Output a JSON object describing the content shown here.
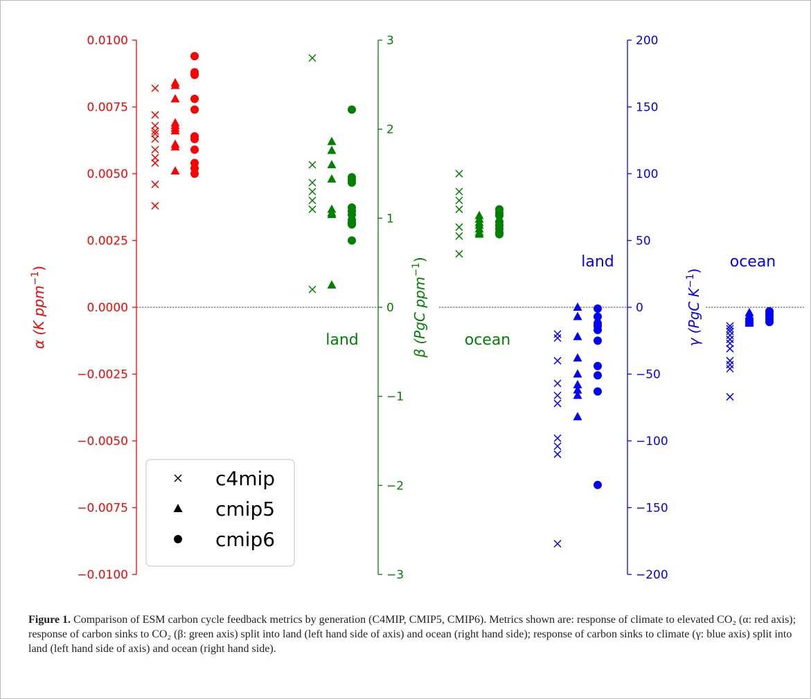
{
  "chart_data": {
    "type": "scatter",
    "groups": [
      "c4mip",
      "cmip5",
      "cmip6"
    ],
    "legend": {
      "entries": [
        "c4mip",
        "cmip5",
        "cmip6"
      ],
      "markers": [
        "x",
        "triangle",
        "circle"
      ],
      "position": "lower-left"
    },
    "zero_line": true,
    "axes": [
      {
        "id": "alpha",
        "label_greek": "α",
        "label_units": "(K ppm",
        "label_exp": "−1",
        "label_close": ")",
        "color": "#ff0000",
        "ylim": [
          -0.01,
          0.01
        ],
        "ticks": [
          0.01,
          0.0075,
          0.005,
          0.0025,
          0.0,
          -0.0025,
          -0.005,
          -0.0075,
          -0.01
        ],
        "tick_labels": [
          "0.0100",
          "0.0075",
          "0.0050",
          "0.0025",
          "0.0000",
          "−0.0025",
          "−0.0050",
          "−0.0075",
          "−0.0100"
        ],
        "columns": [
          {
            "group": "c4mip",
            "values": [
              0.0082,
              0.0072,
              0.0068,
              0.0066,
              0.0065,
              0.0063,
              0.0059,
              0.0056,
              0.0054,
              0.0046,
              0.0038
            ]
          },
          {
            "group": "cmip5",
            "values": [
              0.0084,
              0.0083,
              0.0078,
              0.0069,
              0.0068,
              0.0067,
              0.0066,
              0.0061,
              0.006,
              0.0051
            ]
          },
          {
            "group": "cmip6",
            "values": [
              0.0094,
              0.0088,
              0.0087,
              0.0078,
              0.0074,
              0.0064,
              0.0063,
              0.0059,
              0.0054,
              0.0052,
              0.005
            ]
          }
        ]
      },
      {
        "id": "beta",
        "label_greek": "β",
        "label_units": "(PgC ppm",
        "label_exp": "−1",
        "label_close": ")",
        "color": "#008000",
        "ylim": [
          -3,
          3
        ],
        "ticks": [
          3,
          2,
          1,
          0,
          -1,
          -2,
          -3
        ],
        "tick_labels": [
          "3",
          "2",
          "1",
          "0",
          "−1",
          "−2",
          "−3"
        ],
        "section_labels": [
          "land",
          "ocean"
        ],
        "columns": [
          {
            "section": "land",
            "group": "c4mip",
            "values": [
              2.8,
              1.6,
              1.4,
              1.3,
              1.2,
              1.1,
              0.2
            ]
          },
          {
            "section": "land",
            "group": "cmip5",
            "values": [
              1.86,
              1.76,
              1.6,
              1.44,
              1.1,
              1.06,
              1.04,
              0.25
            ]
          },
          {
            "section": "land",
            "group": "cmip6",
            "values": [
              2.22,
              1.46,
              1.43,
              1.4,
              1.12,
              1.08,
              1.04,
              0.98,
              0.95,
              0.93,
              0.75
            ]
          },
          {
            "section": "ocean",
            "group": "c4mip",
            "values": [
              1.5,
              1.3,
              1.2,
              1.1,
              0.9,
              0.8,
              0.6
            ]
          },
          {
            "section": "ocean",
            "group": "cmip5",
            "values": [
              1.03,
              0.99,
              0.95,
              0.92,
              0.88,
              0.84,
              0.82
            ]
          },
          {
            "section": "ocean",
            "group": "cmip6",
            "values": [
              1.1,
              1.06,
              1.03,
              0.96,
              0.92,
              0.88,
              0.84,
              0.82
            ]
          }
        ]
      },
      {
        "id": "gamma",
        "label_greek": "γ",
        "label_units": "(PgC K",
        "label_exp": "−1",
        "label_close": ")",
        "color": "#0000ff",
        "ylim": [
          -200,
          200
        ],
        "ticks": [
          200,
          150,
          100,
          50,
          0,
          -50,
          -100,
          -150,
          -200
        ],
        "tick_labels": [
          "200",
          "150",
          "100",
          "50",
          "0",
          "−50",
          "−100",
          "−150",
          "−200"
        ],
        "section_labels": [
          "land",
          "ocean"
        ],
        "columns": [
          {
            "section": "land",
            "group": "c4mip",
            "values": [
              -20,
              -23,
              -40,
              -57,
              -66,
              -72,
              -98,
              -104,
              -110,
              -177
            ]
          },
          {
            "section": "land",
            "group": "cmip5",
            "values": [
              0,
              -7,
              -22,
              -38,
              -50,
              -58,
              -62,
              -66,
              -82
            ]
          },
          {
            "section": "land",
            "group": "cmip6",
            "values": [
              -1,
              -7,
              -12,
              -14,
              -17,
              -25,
              -44,
              -51,
              -63,
              -133
            ]
          },
          {
            "section": "ocean",
            "group": "c4mip",
            "values": [
              -14,
              -16,
              -18,
              -21,
              -24,
              -27,
              -31,
              -40,
              -43,
              -46,
              -67
            ]
          },
          {
            "section": "ocean",
            "group": "cmip5",
            "values": [
              -4,
              -6,
              -7,
              -8,
              -9,
              -10,
              -11,
              -12
            ]
          },
          {
            "section": "ocean",
            "group": "cmip6",
            "values": [
              -3,
              -5,
              -7,
              -9,
              -11
            ]
          }
        ]
      }
    ]
  },
  "caption": {
    "label": "Figure 1.",
    "text": " Comparison of ESM carbon cycle feedback metrics by generation (C4MIP, CMIP5, CMIP6). Metrics shown are: response of climate to elevated CO₂ (α: red axis); response of carbon sinks to CO₂ (β: green axis) split into land (left hand side of axis) and ocean (right hand side); response of carbon sinks to climate (γ: blue axis) split into land (left hand side of axis) and ocean (right hand side)."
  }
}
